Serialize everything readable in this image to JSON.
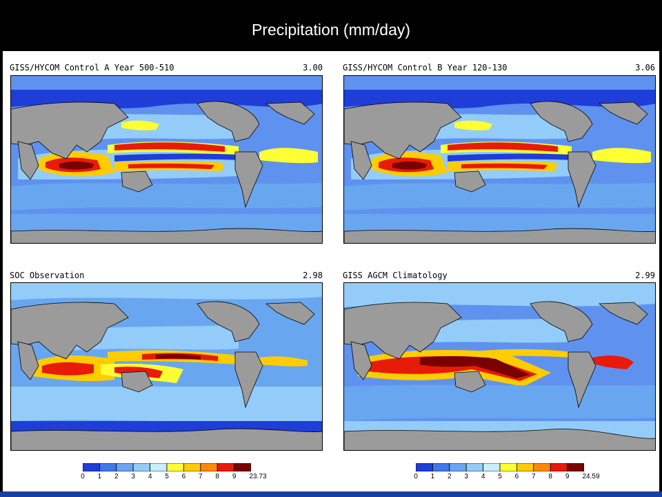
{
  "title": "Precipitation (mm/day)",
  "panels": [
    {
      "label": "GISS/HYCOM Control A Year 500-510",
      "value": "3.00"
    },
    {
      "label": "GISS/HYCOM Control B Year 120-130",
      "value": "3.06"
    },
    {
      "label": "SOC Observation",
      "value": "2.98"
    },
    {
      "label": "GISS AGCM Climatology",
      "value": "2.99"
    }
  ],
  "colorbars": [
    {
      "ticks": [
        "0",
        "1",
        "2",
        "3",
        "4",
        "5",
        "6",
        "7",
        "8",
        "9",
        "23.73"
      ]
    },
    {
      "ticks": [
        "0",
        "1",
        "2",
        "3",
        "4",
        "5",
        "6",
        "7",
        "8",
        "9",
        "24.59"
      ]
    }
  ],
  "colors": {
    "bins": [
      "#1f3ed8",
      "#3f78e8",
      "#69a6f0",
      "#93ccf8",
      "#c8eeff",
      "#ffff33",
      "#ffcc00",
      "#ff8a00",
      "#e81a0a",
      "#7a0000"
    ],
    "land": "#9b9b9b",
    "background_ocean": "#5f92ee"
  }
}
